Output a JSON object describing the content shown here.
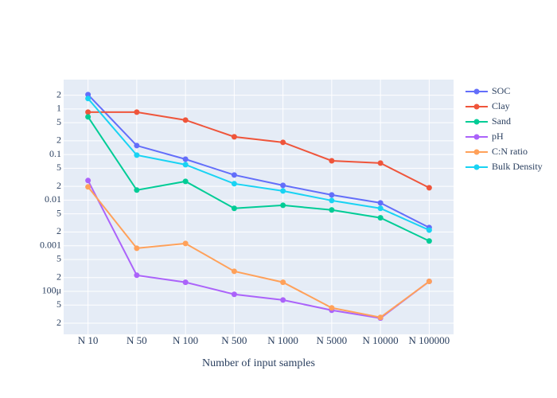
{
  "chart_data": {
    "type": "line",
    "x_label": "Number of input samples",
    "categories": [
      "N 10",
      "N 50",
      "N 100",
      "N 500",
      "N 1000",
      "N 5000",
      "N 10000",
      "N 100000"
    ],
    "log_y": true,
    "grid": true,
    "legend": "right",
    "ylim": [
      1.14e-05,
      4.4
    ],
    "yticks": [
      2,
      1,
      {
        "value": 0.5,
        "label": "5"
      },
      {
        "value": 0.2,
        "label": "2"
      },
      0.1,
      {
        "value": 0.05,
        "label": "5"
      },
      {
        "value": 0.02,
        "label": "2"
      },
      0.01,
      {
        "value": 0.005,
        "label": "5"
      },
      {
        "value": 0.002,
        "label": "2"
      },
      0.001,
      {
        "value": 0.0005,
        "label": "5"
      },
      {
        "value": 0.0002,
        "label": "2"
      },
      {
        "value": 0.0001,
        "label": "100μ"
      },
      {
        "value": 5e-05,
        "label": "5"
      },
      {
        "value": 2e-05,
        "label": "2"
      }
    ],
    "series": [
      {
        "name": "SOC",
        "color": "#636efa",
        "values": [
          2.06,
          0.157,
          0.079,
          0.0356,
          0.0211,
          0.013,
          0.0087,
          0.0025
        ]
      },
      {
        "name": "Clay",
        "color": "#ef553b",
        "values": [
          0.85,
          0.85,
          0.57,
          0.245,
          0.185,
          0.073,
          0.065,
          0.0187
        ]
      },
      {
        "name": "Sand",
        "color": "#00cc96",
        "values": [
          0.67,
          0.0166,
          0.0258,
          0.0066,
          0.0077,
          0.0061,
          0.0041,
          0.00127
        ]
      },
      {
        "name": "pH",
        "color": "#ab63fa",
        "values": [
          0.0269,
          0.000225,
          0.000158,
          8.6e-05,
          6.46e-05,
          3.85e-05,
          2.58e-05,
          0.000165
        ]
      },
      {
        "name": "C:N ratio",
        "color": "#ffa15a",
        "values": [
          0.0195,
          0.00088,
          0.00112,
          0.000275,
          0.000158,
          4.34e-05,
          2.68e-05,
          0.000165
        ]
      },
      {
        "name": "Bulk Density",
        "color": "#19d3f3",
        "values": [
          1.69,
          0.097,
          0.06,
          0.0229,
          0.0159,
          0.0098,
          0.0066,
          0.0022
        ]
      }
    ]
  }
}
